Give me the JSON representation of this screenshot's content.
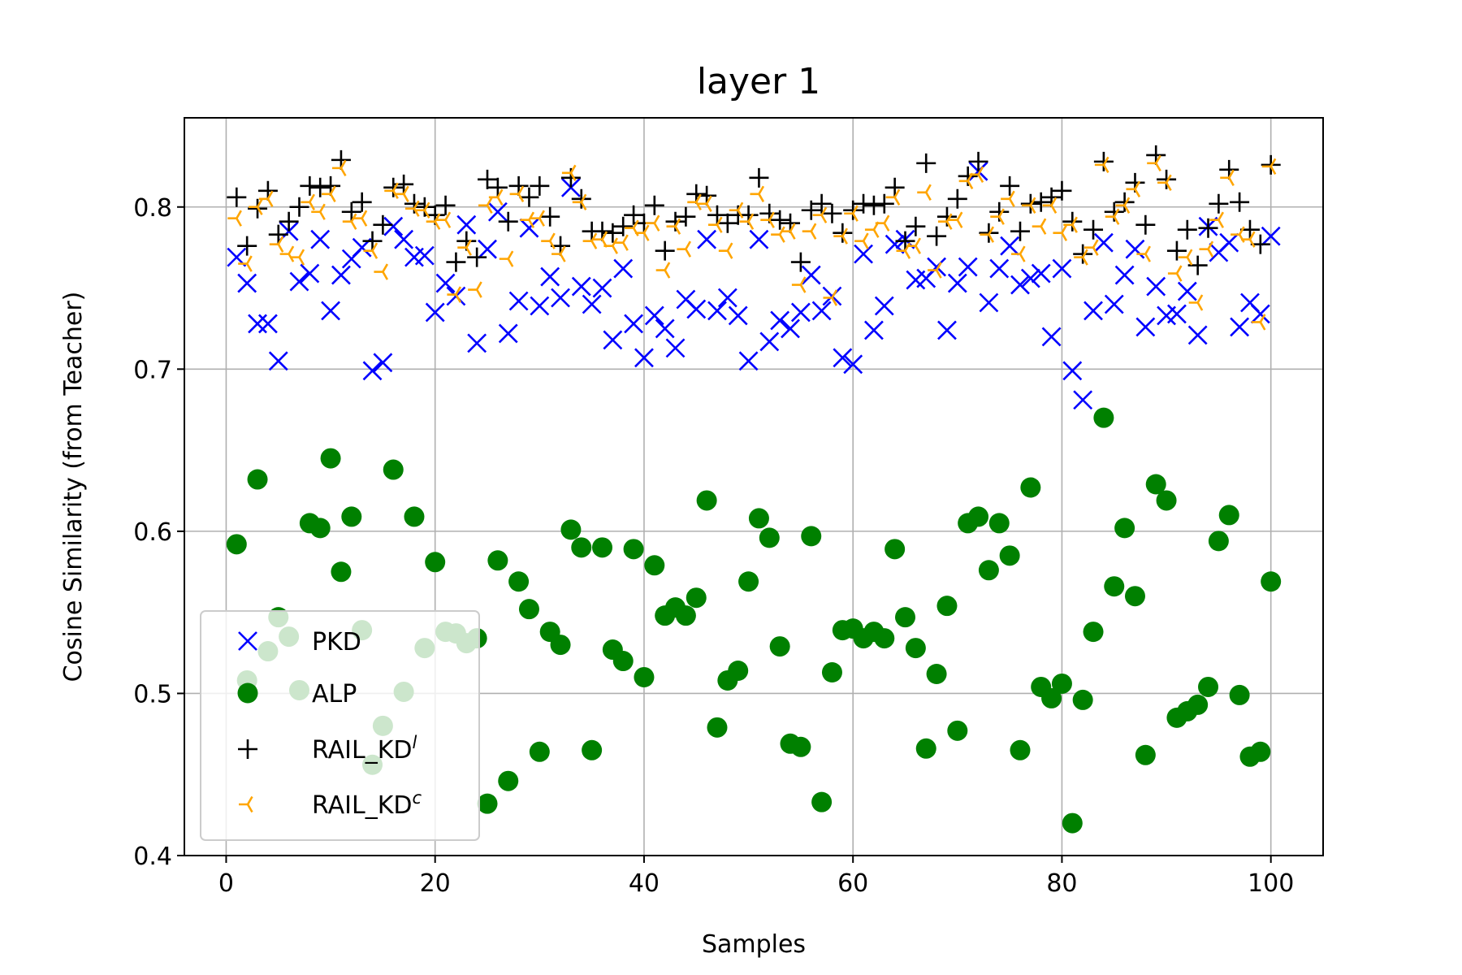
{
  "chart_data": {
    "type": "scatter",
    "title": "layer 1",
    "xlabel": "Samples",
    "ylabel": "Cosine Similarity (from Teacher)",
    "xlim": [
      -4,
      105
    ],
    "ylim": [
      0.4,
      0.855
    ],
    "xticks": [
      0,
      20,
      40,
      60,
      80,
      100
    ],
    "xtick_labels": [
      "0",
      "20",
      "40",
      "60",
      "80",
      "100"
    ],
    "yticks": [
      0.4,
      0.5,
      0.6,
      0.7,
      0.8
    ],
    "ytick_labels": [
      "0.4",
      "0.5",
      "0.6",
      "0.7",
      "0.8"
    ],
    "grid": true,
    "legend_position": "lower-left",
    "series": [
      {
        "name": "PKD",
        "name_base": "PKD",
        "name_sup": "",
        "marker": "x",
        "color": "#0000ff",
        "x": [
          1,
          2,
          3,
          4,
          5,
          6,
          7,
          8,
          9,
          10,
          11,
          12,
          13,
          14,
          15,
          16,
          17,
          18,
          19,
          20,
          21,
          22,
          23,
          24,
          25,
          26,
          27,
          28,
          29,
          30,
          31,
          32,
          33,
          34,
          35,
          36,
          37,
          38,
          39,
          40,
          41,
          42,
          43,
          44,
          45,
          46,
          47,
          48,
          49,
          50,
          51,
          52,
          53,
          54,
          55,
          56,
          57,
          58,
          59,
          60,
          61,
          62,
          63,
          64,
          65,
          66,
          67,
          68,
          69,
          70,
          71,
          72,
          73,
          74,
          75,
          76,
          77,
          78,
          79,
          80,
          81,
          82,
          83,
          84,
          85,
          86,
          87,
          88,
          89,
          90,
          91,
          92,
          93,
          94,
          95,
          96,
          97,
          98,
          99,
          100
        ],
        "y": [
          0.769,
          0.753,
          0.728,
          0.728,
          0.705,
          0.785,
          0.754,
          0.759,
          0.78,
          0.736,
          0.758,
          0.768,
          0.775,
          0.699,
          0.704,
          0.788,
          0.78,
          0.769,
          0.77,
          0.735,
          0.753,
          0.745,
          0.789,
          0.716,
          0.774,
          0.797,
          0.722,
          0.742,
          0.787,
          0.739,
          0.757,
          0.744,
          0.812,
          0.751,
          0.74,
          0.75,
          0.718,
          0.762,
          0.728,
          0.707,
          0.733,
          0.725,
          0.713,
          0.743,
          0.737,
          0.78,
          0.736,
          0.744,
          0.733,
          0.705,
          0.78,
          0.717,
          0.73,
          0.725,
          0.735,
          0.758,
          0.736,
          0.745,
          0.707,
          0.703,
          0.771,
          0.724,
          0.739,
          0.777,
          0.78,
          0.755,
          0.756,
          0.763,
          0.724,
          0.753,
          0.763,
          0.822,
          0.741,
          0.762,
          0.776,
          0.752,
          0.756,
          0.759,
          0.72,
          0.762,
          0.699,
          0.681,
          0.736,
          0.778,
          0.74,
          0.758,
          0.774,
          0.726,
          0.751,
          0.733,
          0.734,
          0.748,
          0.721,
          0.788,
          0.772,
          0.778,
          0.726,
          0.741,
          0.734,
          0.782
        ]
      },
      {
        "name": "ALP",
        "name_base": "ALP",
        "name_sup": "",
        "marker": "o",
        "color": "#008000",
        "x": [
          1,
          2,
          3,
          4,
          5,
          6,
          7,
          8,
          9,
          10,
          11,
          12,
          13,
          14,
          15,
          16,
          17,
          18,
          19,
          20,
          21,
          22,
          23,
          24,
          25,
          26,
          27,
          28,
          29,
          30,
          31,
          32,
          33,
          34,
          35,
          36,
          37,
          38,
          39,
          40,
          41,
          42,
          43,
          44,
          45,
          46,
          47,
          48,
          49,
          50,
          51,
          52,
          53,
          54,
          55,
          56,
          57,
          58,
          59,
          60,
          61,
          62,
          63,
          64,
          65,
          66,
          67,
          68,
          69,
          70,
          71,
          72,
          73,
          74,
          75,
          76,
          77,
          78,
          79,
          80,
          81,
          82,
          83,
          84,
          85,
          86,
          87,
          88,
          89,
          90,
          91,
          92,
          93,
          94,
          95,
          96,
          97,
          98,
          99,
          100
        ],
        "y": [
          0.592,
          0.508,
          0.632,
          0.526,
          0.547,
          0.535,
          0.502,
          0.605,
          0.602,
          0.645,
          0.575,
          0.609,
          0.539,
          0.456,
          0.48,
          0.638,
          0.501,
          0.609,
          0.528,
          0.581,
          0.538,
          0.537,
          0.531,
          0.534,
          0.432,
          0.582,
          0.446,
          0.569,
          0.552,
          0.464,
          0.538,
          0.53,
          0.601,
          0.59,
          0.465,
          0.59,
          0.527,
          0.52,
          0.589,
          0.51,
          0.579,
          0.548,
          0.553,
          0.548,
          0.559,
          0.619,
          0.479,
          0.508,
          0.514,
          0.569,
          0.608,
          0.596,
          0.529,
          0.469,
          0.467,
          0.597,
          0.433,
          0.513,
          0.539,
          0.54,
          0.534,
          0.538,
          0.534,
          0.589,
          0.547,
          0.528,
          0.466,
          0.512,
          0.554,
          0.477,
          0.605,
          0.609,
          0.576,
          0.605,
          0.585,
          0.465,
          0.627,
          0.504,
          0.497,
          0.506,
          0.42,
          0.496,
          0.538,
          0.67,
          0.566,
          0.602,
          0.56,
          0.462,
          0.629,
          0.619,
          0.485,
          0.489,
          0.493,
          0.504,
          0.594,
          0.61,
          0.499,
          0.461,
          0.464,
          0.569
        ]
      },
      {
        "name": "RAIL_KDˡ",
        "name_base": "RAIL_KD",
        "name_sup": "l",
        "marker": "+",
        "color": "#000000",
        "x": [
          1,
          2,
          3,
          4,
          5,
          6,
          7,
          8,
          9,
          10,
          11,
          12,
          13,
          14,
          15,
          16,
          17,
          18,
          19,
          20,
          21,
          22,
          23,
          24,
          25,
          26,
          27,
          28,
          29,
          30,
          31,
          32,
          33,
          34,
          35,
          36,
          37,
          38,
          39,
          40,
          41,
          42,
          43,
          44,
          45,
          46,
          47,
          48,
          49,
          50,
          51,
          52,
          53,
          54,
          55,
          56,
          57,
          58,
          59,
          60,
          61,
          62,
          63,
          64,
          65,
          66,
          67,
          68,
          69,
          70,
          71,
          72,
          73,
          74,
          75,
          76,
          77,
          78,
          79,
          80,
          81,
          82,
          83,
          84,
          85,
          86,
          87,
          88,
          89,
          90,
          91,
          92,
          93,
          94,
          95,
          96,
          97,
          98,
          99,
          100
        ],
        "y": [
          0.806,
          0.776,
          0.799,
          0.81,
          0.783,
          0.791,
          0.8,
          0.813,
          0.812,
          0.813,
          0.829,
          0.797,
          0.803,
          0.779,
          0.789,
          0.812,
          0.814,
          0.802,
          0.8,
          0.795,
          0.801,
          0.766,
          0.779,
          0.769,
          0.817,
          0.812,
          0.791,
          0.813,
          0.806,
          0.813,
          0.794,
          0.776,
          0.818,
          0.805,
          0.785,
          0.785,
          0.784,
          0.788,
          0.795,
          0.79,
          0.801,
          0.773,
          0.791,
          0.794,
          0.808,
          0.807,
          0.795,
          0.79,
          0.795,
          0.795,
          0.818,
          0.796,
          0.792,
          0.79,
          0.766,
          0.798,
          0.802,
          0.796,
          0.784,
          0.798,
          0.802,
          0.801,
          0.802,
          0.812,
          0.779,
          0.788,
          0.827,
          0.782,
          0.794,
          0.805,
          0.819,
          0.828,
          0.784,
          0.797,
          0.813,
          0.785,
          0.802,
          0.803,
          0.806,
          0.81,
          0.791,
          0.771,
          0.786,
          0.828,
          0.797,
          0.803,
          0.815,
          0.789,
          0.832,
          0.817,
          0.773,
          0.786,
          0.764,
          0.787,
          0.802,
          0.823,
          0.803,
          0.786,
          0.777,
          0.826
        ]
      },
      {
        "name": "RAIL_KDᶜ",
        "name_base": "RAIL_KD",
        "name_sup": "c",
        "marker": "tri_left",
        "color": "#ffa500",
        "x": [
          1,
          2,
          3,
          4,
          5,
          6,
          7,
          8,
          9,
          10,
          11,
          12,
          13,
          14,
          15,
          16,
          17,
          18,
          19,
          20,
          21,
          22,
          23,
          24,
          25,
          26,
          27,
          28,
          29,
          30,
          31,
          32,
          33,
          34,
          35,
          36,
          37,
          38,
          39,
          40,
          41,
          42,
          43,
          44,
          45,
          46,
          47,
          48,
          49,
          50,
          51,
          52,
          53,
          54,
          55,
          56,
          57,
          58,
          59,
          60,
          61,
          62,
          63,
          64,
          65,
          66,
          67,
          68,
          69,
          70,
          71,
          72,
          73,
          74,
          75,
          76,
          77,
          78,
          79,
          80,
          81,
          82,
          83,
          84,
          85,
          86,
          87,
          88,
          89,
          90,
          91,
          92,
          93,
          94,
          95,
          96,
          97,
          98,
          99,
          100
        ],
        "y": [
          0.793,
          0.765,
          0.8,
          0.805,
          0.777,
          0.771,
          0.769,
          0.803,
          0.797,
          0.808,
          0.824,
          0.791,
          0.793,
          0.773,
          0.76,
          0.81,
          0.808,
          0.799,
          0.798,
          0.791,
          0.792,
          0.746,
          0.775,
          0.749,
          0.801,
          0.806,
          0.768,
          0.808,
          0.792,
          0.793,
          0.779,
          0.771,
          0.821,
          0.803,
          0.779,
          0.78,
          0.776,
          0.778,
          0.787,
          0.784,
          0.79,
          0.761,
          0.788,
          0.774,
          0.803,
          0.802,
          0.789,
          0.773,
          0.798,
          0.791,
          0.808,
          0.792,
          0.783,
          0.785,
          0.752,
          0.785,
          0.795,
          0.744,
          0.782,
          0.796,
          0.779,
          0.786,
          0.79,
          0.806,
          0.773,
          0.776,
          0.809,
          0.761,
          0.791,
          0.792,
          0.816,
          0.82,
          0.783,
          0.794,
          0.805,
          0.771,
          0.801,
          0.788,
          0.801,
          0.784,
          0.789,
          0.769,
          0.775,
          0.826,
          0.794,
          0.801,
          0.811,
          0.771,
          0.827,
          0.815,
          0.759,
          0.769,
          0.741,
          0.774,
          0.792,
          0.818,
          0.783,
          0.78,
          0.729,
          0.825
        ]
      }
    ]
  }
}
